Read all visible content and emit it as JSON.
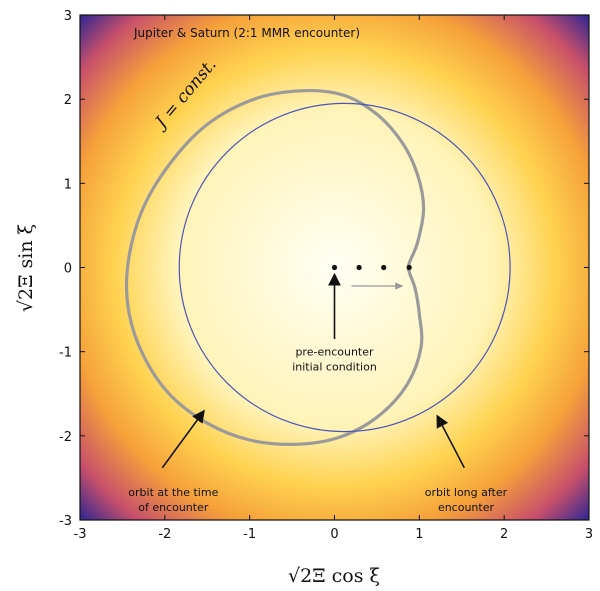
{
  "chart_data": {
    "type": "line",
    "title": "Jupiter & Saturn (2:1 MMR encounter)",
    "xlabel": "√2Ξ cos ξ",
    "ylabel": "√2Ξ sin ξ",
    "xlim": [
      -3,
      3
    ],
    "ylim": [
      -3,
      3
    ],
    "xticks": [
      -3,
      -2,
      -1,
      0,
      1,
      2,
      3
    ],
    "yticks": [
      -3,
      -2,
      -1,
      0,
      1,
      2,
      3
    ],
    "xtick_labels": [
      "-3",
      "-2",
      "-1",
      "0",
      "1",
      "2",
      "3"
    ],
    "ytick_labels": [
      "-3",
      "-2",
      "-1",
      "0",
      "1",
      "2",
      "3"
    ],
    "background": {
      "type": "radial-heatmap",
      "colors": [
        "#fffff4",
        "#fff3b8",
        "#ffd24f",
        "#f5a13a",
        "#c8506a",
        "#3b2a8e"
      ]
    },
    "series": [
      {
        "kind": "closed-curve",
        "color": "#9a9a9a",
        "points": [
          [
            0.88,
            0.05
          ],
          [
            0.98,
            0.3
          ],
          [
            1.05,
            0.7
          ],
          [
            0.98,
            1.1
          ],
          [
            0.8,
            1.48
          ],
          [
            0.5,
            1.82
          ],
          [
            0.1,
            2.05
          ],
          [
            -0.4,
            2.1
          ],
          [
            -0.95,
            2.0
          ],
          [
            -1.5,
            1.7
          ],
          [
            -1.95,
            1.22
          ],
          [
            -2.28,
            0.65
          ],
          [
            -2.44,
            0.0
          ],
          [
            -2.42,
            -0.55
          ],
          [
            -2.25,
            -1.05
          ],
          [
            -1.95,
            -1.5
          ],
          [
            -1.5,
            -1.85
          ],
          [
            -1.0,
            -2.05
          ],
          [
            -0.45,
            -2.1
          ],
          [
            0.05,
            -2.02
          ],
          [
            0.5,
            -1.78
          ],
          [
            0.85,
            -1.4
          ],
          [
            1.02,
            -0.95
          ],
          [
            1.0,
            -0.55
          ],
          [
            0.95,
            -0.25
          ],
          [
            0.88,
            -0.05
          ]
        ]
      },
      {
        "kind": "circle",
        "color": "#4a55b8",
        "center": [
          0.12,
          0.0
        ],
        "radius": 1.95
      }
    ],
    "points": [
      {
        "x": 0.0,
        "y": 0.0
      },
      {
        "x": 0.29,
        "y": 0.0
      },
      {
        "x": 0.58,
        "y": 0.0
      },
      {
        "x": 0.88,
        "y": 0.0
      }
    ],
    "progress_arrow": {
      "from": [
        0.2,
        -0.22
      ],
      "to": [
        0.8,
        -0.22
      ]
    },
    "annotations": [
      {
        "text": "J = const.",
        "x": -2.02,
        "y": 1.65,
        "kind": "curve-label"
      },
      {
        "lines": [
          "pre-encounter",
          "initial condition"
        ],
        "x": 0.0,
        "y": -0.88,
        "arrow_from": [
          0.0,
          -0.85
        ],
        "arrow_to": [
          0.0,
          -0.1
        ]
      },
      {
        "lines": [
          "orbit at the time",
          "of encounter"
        ],
        "x": -1.9,
        "y": -2.55,
        "arrow_from": [
          -2.03,
          -2.38
        ],
        "arrow_to": [
          -1.55,
          -1.72
        ]
      },
      {
        "lines": [
          "orbit long after",
          "encounter"
        ],
        "x": 1.55,
        "y": -2.55,
        "arrow_from": [
          1.53,
          -2.38
        ],
        "arrow_to": [
          1.22,
          -1.78
        ]
      }
    ]
  }
}
